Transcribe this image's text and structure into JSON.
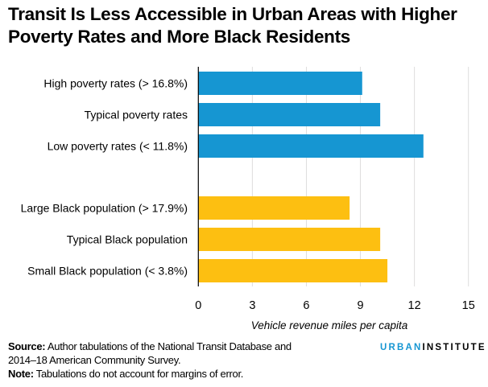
{
  "title": "Transit Is Less Accessible in Urban Areas with Higher Poverty Rates and More Black Residents",
  "chart_data": {
    "type": "bar",
    "orientation": "horizontal",
    "title": "Transit Is Less Accessible in Urban Areas with Higher Poverty Rates and More Black Residents",
    "categories": [
      "High poverty rates (> 16.8%)",
      "Typical poverty rates",
      "Low poverty rates (< 11.8%)",
      "Large Black population (> 17.9%)",
      "Typical Black population",
      "Small Black population (< 3.8%)"
    ],
    "values": [
      9.1,
      10.1,
      12.5,
      8.4,
      10.1,
      10.5
    ],
    "groups": [
      {
        "color": "#1696d2",
        "indices": [
          0,
          1,
          2
        ]
      },
      {
        "color": "#fdbf11",
        "indices": [
          3,
          4,
          5
        ]
      }
    ],
    "xlabel": "Vehicle revenue miles per capita",
    "ylabel": "",
    "xlim": [
      0,
      15
    ],
    "xticks": [
      0,
      3,
      6,
      9,
      12,
      15
    ],
    "grid": "vertical"
  },
  "footer": {
    "source_label": "Source:",
    "source_text": " Author tabulations of the National Transit Database and",
    "source_text2": "2014–18 American Community Survey.",
    "note_label": "Note:",
    "note_text": " Tabulations do not account for margins of error."
  },
  "logo": {
    "part1": "URBAN",
    "part2": "INSTITUTE"
  }
}
